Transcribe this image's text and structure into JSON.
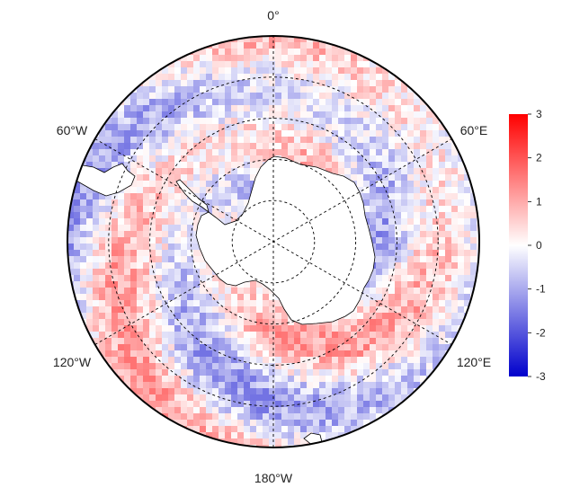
{
  "map": {
    "projection": "south-polar-stereographic",
    "longitude_labels": [
      {
        "lon": 0,
        "text": "0°"
      },
      {
        "lon": -60,
        "text": "60°W"
      },
      {
        "lon": 60,
        "text": "60°E"
      },
      {
        "lon": -120,
        "text": "120°W"
      },
      {
        "lon": 120,
        "text": "120°E"
      },
      {
        "lon": 180,
        "text": "180°W"
      }
    ],
    "latitude_circles": [
      -80,
      -70,
      -60,
      -50
    ],
    "boundary_latitude": -40,
    "colors": {
      "negative": "#0000cc",
      "zero": "#ffffff",
      "positive": "#ff0000",
      "land": "#ffffff",
      "coast": "#000000",
      "grid": "#000000"
    }
  },
  "colorbar": {
    "min": -3,
    "max": 3,
    "ticks": [
      {
        "value": 3,
        "text": "3"
      },
      {
        "value": 2,
        "text": "2"
      },
      {
        "value": 1,
        "text": "1"
      },
      {
        "value": 0,
        "text": "0"
      },
      {
        "value": -1,
        "text": "-1"
      },
      {
        "value": -2,
        "text": "-2"
      },
      {
        "value": -3,
        "text": "-3"
      }
    ]
  }
}
